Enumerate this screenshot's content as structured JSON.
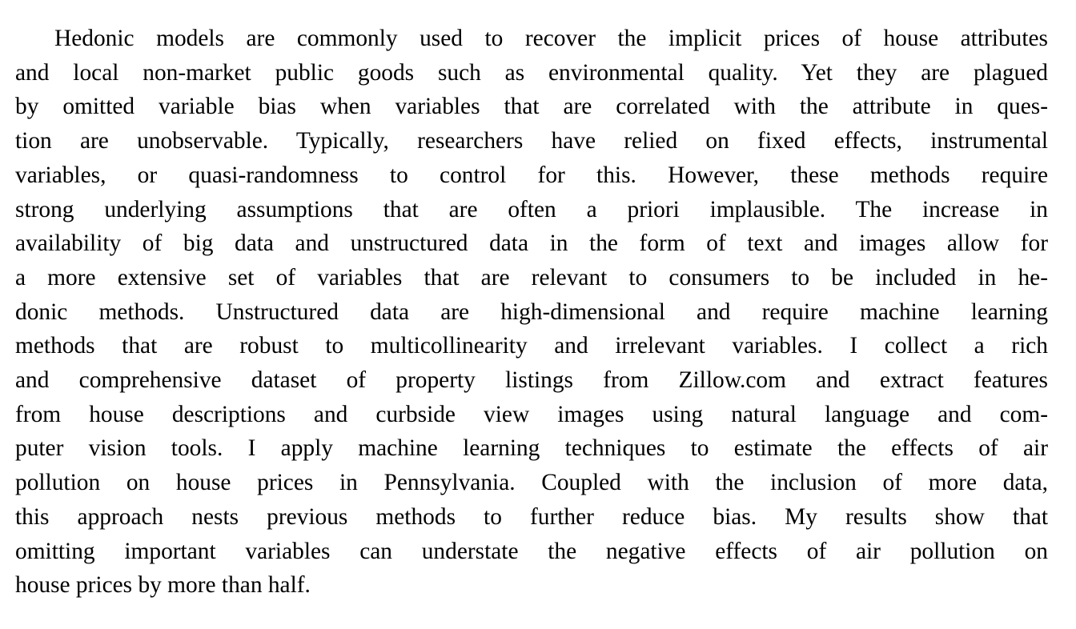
{
  "abstract": {
    "lines": [
      "Hedonic models are commonly used to recover the implicit prices of house attributes",
      "and local non-market public goods such as environmental quality. Yet they are plagued",
      "by omitted variable bias when variables that are correlated with the attribute in ques-",
      "tion are unobservable. Typically, researchers have relied on fixed effects, instrumental",
      "variables, or quasi-randomness to control for this. However, these methods require",
      "strong underlying assumptions that are often a priori implausible. The increase in",
      "availability of big data and unstructured data in the form of text and images allow for",
      "a more extensive set of variables that are relevant to consumers to be included in he-",
      "donic methods. Unstructured data are high-dimensional and require machine learning",
      "methods that are robust to multicollinearity and irrelevant variables. I collect a rich",
      "and comprehensive dataset of property listings from Zillow.com and extract features",
      "from house descriptions and curbside view images using natural language and com-",
      "puter vision tools. I apply machine learning techniques to estimate the effects of air",
      "pollution on house prices in Pennsylvania. Coupled with the inclusion of more data,",
      "this approach nests previous methods to further reduce bias. My results show that",
      "omitting important variables can understate the negative effects of air pollution on",
      "house prices by more than half."
    ]
  }
}
